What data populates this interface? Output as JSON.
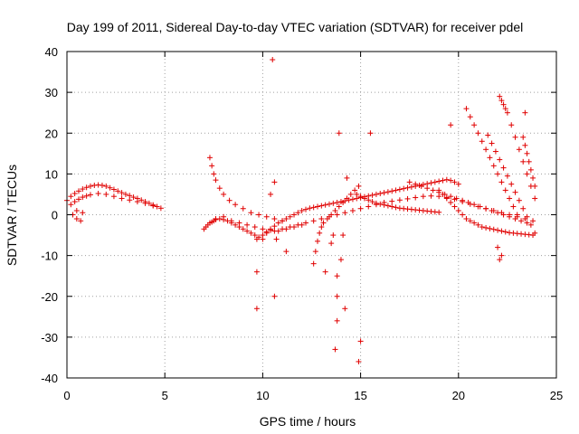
{
  "chart_data": {
    "type": "scatter",
    "title": "Day 199 of 2011, Sidereal Day-to-day VTEC variation (SDTVAR) for receiver pdel",
    "xlabel": "GPS time / hours",
    "ylabel": "SDTVAR / TECUs",
    "xlim": [
      0,
      25
    ],
    "ylim": [
      -40,
      40
    ],
    "xticks": [
      "0",
      "5",
      "10",
      "15",
      "20",
      "25"
    ],
    "yticks": [
      "40",
      "30",
      "20",
      "10",
      "0",
      "-10",
      "-20",
      "-30",
      "-40"
    ],
    "grid": true,
    "marker": "+",
    "color": "#e00000",
    "series": [
      {
        "name": "SDTVAR",
        "x": [
          0.0,
          0.2,
          0.4,
          0.6,
          0.8,
          1.0,
          1.2,
          1.4,
          1.6,
          1.8,
          2.0,
          2.2,
          2.4,
          2.6,
          2.8,
          3.0,
          3.2,
          3.4,
          3.6,
          3.8,
          4.0,
          4.2,
          4.4,
          4.6,
          4.8,
          0.2,
          0.4,
          0.6,
          0.8,
          1.0,
          1.2,
          1.6,
          2.0,
          2.4,
          2.8,
          3.2,
          3.6,
          4.0,
          4.4,
          0.3,
          0.5,
          0.7,
          0.5,
          0.8,
          7.0,
          7.1,
          7.2,
          7.3,
          7.4,
          7.5,
          7.6,
          7.8,
          8.0,
          8.2,
          8.4,
          8.6,
          8.8,
          9.0,
          9.2,
          9.4,
          9.6,
          9.8,
          10.0,
          7.3,
          7.4,
          7.5,
          7.6,
          7.8,
          8.0,
          8.3,
          8.6,
          9.0,
          9.4,
          9.8,
          10.2,
          10.6,
          11.0,
          7.6,
          8.0,
          8.4,
          8.8,
          9.2,
          9.6,
          10.0,
          10.4,
          10.8,
          11.2,
          11.6,
          12.0,
          9.7,
          10.0,
          10.2,
          10.4,
          10.6,
          10.8,
          11.0,
          11.2,
          11.4,
          11.6,
          11.8,
          12.0,
          12.2,
          12.4,
          12.6,
          12.8,
          13.0,
          13.2,
          13.4,
          13.6,
          13.8,
          14.0,
          14.2,
          14.4,
          14.6,
          14.8,
          15.0,
          15.2,
          15.4,
          15.6,
          15.8,
          16.0,
          16.2,
          16.4,
          16.6,
          16.8,
          17.0,
          17.2,
          17.4,
          17.6,
          17.8,
          18.0,
          18.2,
          18.4,
          18.6,
          18.8,
          19.0,
          19.2,
          19.4,
          19.6,
          19.8,
          20.0,
          10.2,
          10.6,
          11.0,
          11.4,
          11.8,
          12.2,
          12.6,
          13.0,
          13.4,
          13.8,
          14.2,
          14.6,
          15.0,
          15.4,
          15.8,
          16.2,
          16.6,
          17.0,
          17.4,
          17.8,
          18.2,
          18.6,
          19.0,
          19.4,
          19.8,
          20.2,
          20.6,
          21.0,
          21.4,
          21.8,
          22.2,
          22.6,
          23.0,
          23.4,
          23.8,
          12.6,
          12.7,
          12.8,
          12.9,
          13.0,
          13.1,
          13.3,
          13.5,
          13.7,
          13.9,
          14.1,
          14.3,
          14.5,
          14.7,
          14.9,
          14.8,
          15.0,
          15.2,
          15.4,
          15.6,
          15.8,
          16.0,
          16.2,
          16.4,
          16.6,
          16.8,
          17.0,
          17.2,
          17.4,
          17.6,
          17.8,
          18.0,
          18.2,
          18.4,
          18.6,
          18.8,
          19.0,
          17.5,
          17.8,
          18.1,
          18.4,
          18.7,
          19.0,
          19.3,
          19.6,
          19.9,
          20.2,
          20.5,
          20.8,
          21.1,
          21.4,
          21.7,
          22.0,
          22.3,
          22.6,
          22.9,
          23.2,
          23.5,
          19.0,
          19.2,
          19.4,
          19.6,
          19.8,
          20.0,
          20.2,
          20.4,
          20.6,
          20.8,
          21.0,
          21.2,
          21.4,
          21.6,
          21.8,
          22.0,
          22.2,
          22.4,
          22.6,
          22.8,
          23.0,
          23.2,
          23.4,
          23.6,
          23.8,
          20.4,
          20.6,
          20.8,
          21.0,
          21.2,
          21.4,
          21.6,
          21.8,
          22.0,
          22.2,
          22.4,
          22.6,
          22.8,
          23.0,
          21.5,
          21.7,
          21.9,
          22.1,
          22.3,
          22.5,
          22.7,
          22.9,
          23.1,
          23.3,
          23.5,
          23.7,
          23.9,
          22.1,
          22.2,
          22.3,
          22.4,
          22.5,
          22.7,
          22.9,
          23.1,
          23.3,
          23.5,
          23.7,
          23.9,
          23.3,
          23.4,
          23.5,
          23.6,
          23.7,
          23.8,
          23.9,
          10.5,
          9.7,
          9.7,
          10.6,
          13.9,
          13.8,
          13.7,
          13.8,
          13.8,
          14.2,
          14.0,
          15.0,
          14.9,
          15.5,
          19.6,
          22.2,
          22.1,
          22.0,
          23.4,
          14.3,
          14.1,
          13.2,
          13.5,
          10.6,
          10.4,
          10.7,
          11.2,
          13.6
        ],
        "y": [
          3.5,
          4.5,
          5.2,
          5.8,
          6.3,
          6.7,
          7.0,
          7.2,
          7.3,
          7.2,
          7.0,
          6.6,
          6.2,
          5.8,
          5.4,
          5.0,
          4.7,
          4.3,
          4.0,
          3.6,
          3.2,
          2.8,
          2.4,
          2.0,
          1.6,
          2.5,
          3.2,
          3.8,
          4.3,
          4.6,
          4.9,
          5.2,
          5.0,
          4.5,
          4.0,
          3.6,
          3.2,
          2.8,
          2.2,
          0.0,
          -1.0,
          -1.5,
          1.0,
          0.5,
          -3.5,
          -3.0,
          -2.5,
          -2.0,
          -1.8,
          -1.5,
          -1.2,
          -1.0,
          -1.2,
          -1.5,
          -2.0,
          -2.5,
          -3.0,
          -3.5,
          -4.0,
          -4.5,
          -5.0,
          -5.5,
          -6.0,
          14.0,
          12.0,
          10.0,
          8.5,
          6.5,
          5.0,
          3.5,
          2.5,
          1.5,
          0.5,
          0.0,
          -0.5,
          -1.0,
          -1.5,
          -1.0,
          -0.5,
          -1.5,
          -2.0,
          -2.5,
          -3.0,
          -3.5,
          -3.8,
          -4.0,
          -3.5,
          -3.0,
          -2.5,
          -6.0,
          -5.0,
          -4.2,
          -3.5,
          -2.8,
          -2.0,
          -1.5,
          -1.0,
          -0.5,
          0.0,
          0.5,
          1.0,
          1.3,
          1.6,
          1.8,
          2.0,
          2.2,
          2.4,
          2.6,
          2.8,
          3.0,
          3.2,
          3.4,
          3.6,
          3.8,
          4.0,
          4.2,
          4.4,
          4.6,
          4.8,
          5.0,
          5.2,
          5.4,
          5.6,
          5.8,
          6.0,
          6.2,
          6.4,
          6.6,
          6.8,
          7.0,
          7.2,
          7.4,
          7.6,
          7.8,
          8.0,
          8.2,
          8.4,
          8.6,
          8.4,
          8.0,
          7.5,
          -4.5,
          -4.0,
          -3.5,
          -3.0,
          -2.5,
          -2.0,
          -1.5,
          -1.0,
          -0.5,
          0.0,
          0.5,
          1.0,
          1.5,
          2.0,
          2.5,
          3.0,
          3.3,
          3.6,
          3.9,
          4.2,
          4.5,
          4.6,
          4.5,
          4.2,
          3.8,
          3.2,
          2.6,
          2.0,
          1.5,
          1.0,
          0.5,
          0.0,
          -0.5,
          -1.0,
          -1.5,
          -12.0,
          -9.0,
          -6.5,
          -4.5,
          -3.0,
          -2.0,
          -1.0,
          0.0,
          1.0,
          2.0,
          3.0,
          4.0,
          5.0,
          6.0,
          7.0,
          5.0,
          4.5,
          4.0,
          3.6,
          3.2,
          2.8,
          2.6,
          2.4,
          2.2,
          2.0,
          1.8,
          1.6,
          1.5,
          1.4,
          1.3,
          1.2,
          1.1,
          1.0,
          0.9,
          0.8,
          0.7,
          0.6,
          8.0,
          7.5,
          7.0,
          6.5,
          6.0,
          5.5,
          5.0,
          4.5,
          4.0,
          3.5,
          3.0,
          2.5,
          2.0,
          1.5,
          1.0,
          0.5,
          0.0,
          -0.5,
          -1.0,
          -1.5,
          -2.0,
          6.0,
          5.0,
          4.0,
          3.0,
          2.0,
          1.0,
          0.0,
          -1.0,
          -1.5,
          -2.0,
          -2.5,
          -3.0,
          -3.2,
          -3.4,
          -3.6,
          -3.8,
          -4.0,
          -4.2,
          -4.4,
          -4.5,
          -4.6,
          -4.7,
          -4.8,
          -4.9,
          -5.0,
          26.0,
          24.0,
          22.0,
          20.0,
          18.0,
          16.0,
          14.0,
          12.0,
          10.0,
          8.0,
          6.0,
          4.0,
          2.0,
          0.0,
          19.5,
          17.5,
          15.5,
          13.5,
          11.5,
          9.5,
          7.5,
          5.5,
          3.5,
          1.5,
          -0.5,
          -2.5,
          -4.5,
          29.0,
          28.0,
          27.0,
          26.0,
          25.0,
          22.0,
          19.0,
          16.0,
          13.0,
          10.0,
          7.0,
          4.0,
          19.0,
          17.0,
          15.0,
          13.0,
          11.0,
          9.0,
          7.0,
          38.0,
          -14.0,
          -23.0,
          -20.0,
          20.0,
          -26.0,
          -33.0,
          -20.0,
          -15.0,
          -23.0,
          -11.0,
          -31.0,
          -36.0,
          20.0,
          22.0,
          -10.0,
          -11.0,
          -8.0,
          25.0,
          9.0,
          -5.0,
          -14.0,
          -7.0,
          8.0,
          5.0,
          -6.0,
          -9.0,
          -5.0
        ]
      }
    ]
  }
}
